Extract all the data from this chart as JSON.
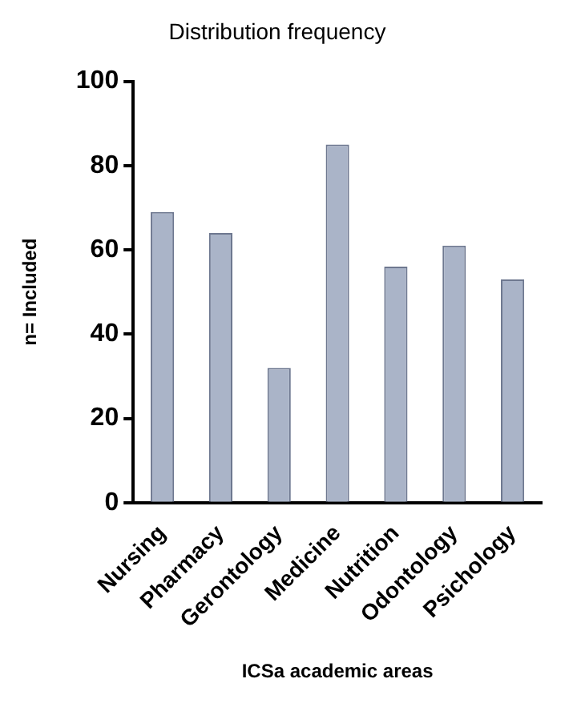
{
  "chart_data": {
    "type": "bar",
    "title": "Distribution frequency",
    "xlabel": "ICSa academic areas",
    "ylabel": "n= Included",
    "categories": [
      "Nursing",
      "Pharmacy",
      "Gerontology",
      "Medicine",
      "Nutrition",
      "Odontology",
      "Psichology"
    ],
    "values": [
      69,
      64,
      32,
      85,
      56,
      61,
      53
    ],
    "color": "#aab4c8",
    "ylim": [
      0,
      100
    ],
    "yticks": [
      0,
      20,
      40,
      60,
      80,
      100
    ],
    "grid": false,
    "legend": false
  }
}
